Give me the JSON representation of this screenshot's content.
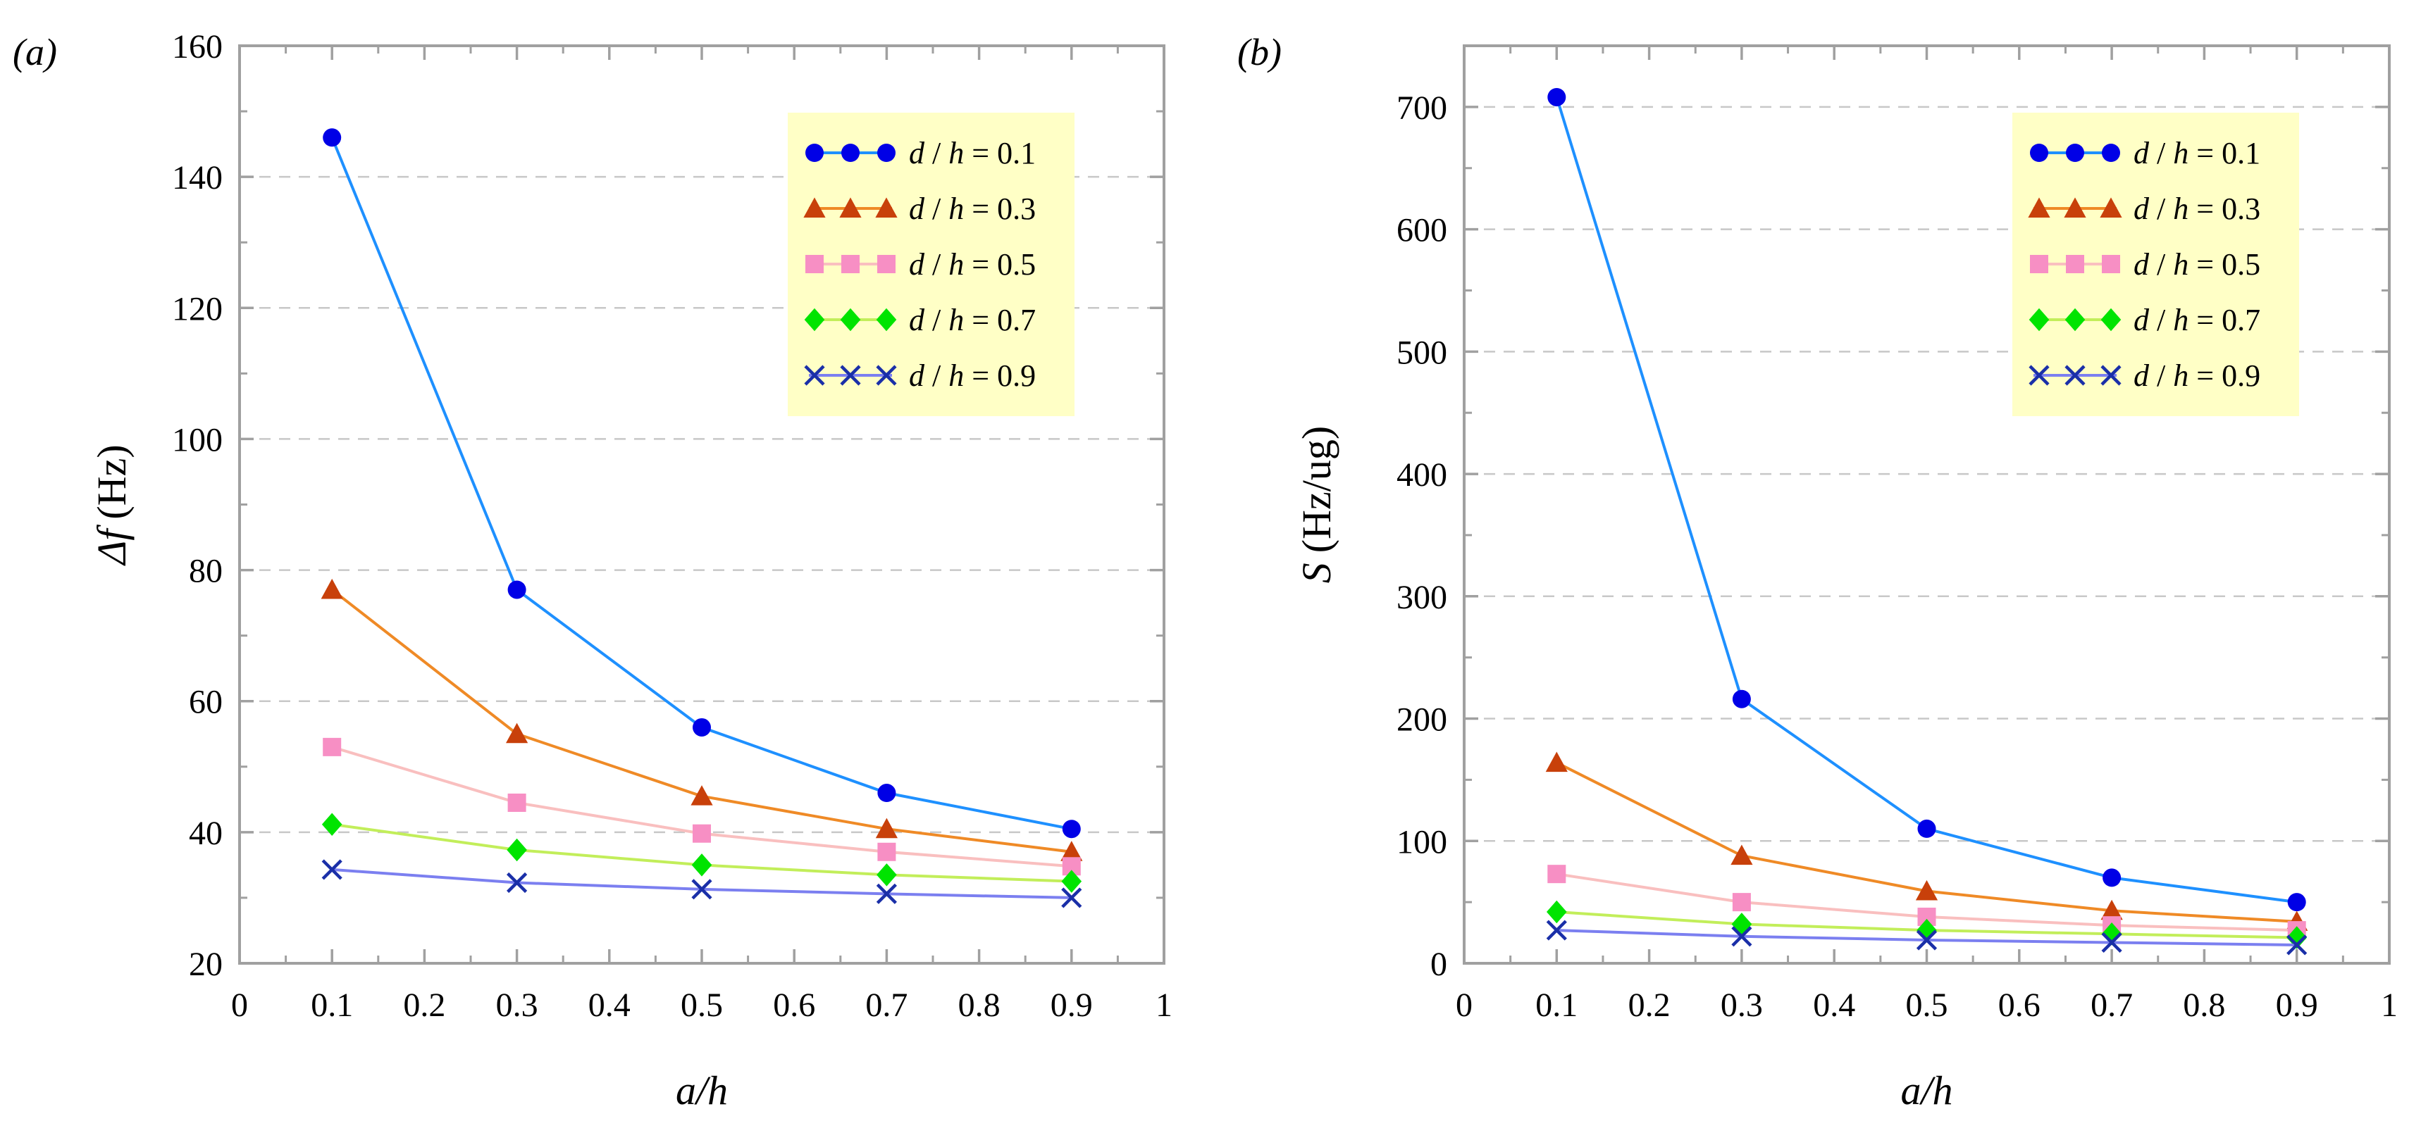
{
  "chart_data": [
    {
      "type": "line",
      "panel_label": "(a)",
      "panel_letter": "a",
      "title": "",
      "xlabel": "a/h",
      "ylabel": "Δf (Hz)",
      "ylabel_symbol": "Δf",
      "ylabel_unit": "(Hz)",
      "xlim": [
        0,
        1
      ],
      "ylim": [
        20,
        160
      ],
      "xticks": [
        0,
        0.1,
        0.2,
        0.3,
        0.4,
        0.5,
        0.6,
        0.7,
        0.8,
        0.9,
        1
      ],
      "xtick_labels": [
        "0",
        "0.1",
        "0.2",
        "0.3",
        "0.4",
        "0.5",
        "0.6",
        "0.7",
        "0.8",
        "0.9",
        "1"
      ],
      "yticks": [
        20,
        40,
        60,
        80,
        100,
        120,
        140,
        160
      ],
      "ytick_labels": [
        "20",
        "40",
        "60",
        "80",
        "100",
        "120",
        "140",
        "160"
      ],
      "grid": "horizontal dashed",
      "legend_position": "top-right",
      "x": [
        0.1,
        0.3,
        0.5,
        0.7,
        0.9
      ],
      "series": [
        {
          "name": "d / h = 0.1",
          "param": "0.1",
          "marker": "circle",
          "color": "#0000e6",
          "line_color": "#1e90ff",
          "values": [
            146,
            77,
            56,
            46,
            40.5
          ]
        },
        {
          "name": "d / h = 0.3",
          "param": "0.3",
          "marker": "triangle",
          "color": "#c8400a",
          "line_color": "#ef8a26",
          "values": [
            77,
            55,
            45.5,
            40.5,
            37
          ]
        },
        {
          "name": "d / h = 0.5",
          "param": "0.5",
          "marker": "square",
          "color": "#f78fc4",
          "line_color": "#f9bfbf",
          "values": [
            53,
            44.5,
            39.8,
            37,
            34.8
          ]
        },
        {
          "name": "d / h = 0.7",
          "param": "0.7",
          "marker": "diamond",
          "color": "#00e400",
          "line_color": "#c2ee5a",
          "values": [
            41.2,
            37.3,
            35,
            33.5,
            32.5
          ]
        },
        {
          "name": "d / h = 0.9",
          "param": "0.9",
          "marker": "x",
          "color": "#1a2fa8",
          "line_color": "#7b7ff0",
          "values": [
            34.3,
            32.3,
            31.3,
            30.6,
            30
          ]
        }
      ]
    },
    {
      "type": "line",
      "panel_label": "(b)",
      "panel_letter": "b",
      "title": "",
      "xlabel": "a/h",
      "ylabel": "S (Hz/ug)",
      "ylabel_symbol": "S",
      "ylabel_unit": "(Hz/ug)",
      "xlim": [
        0,
        1
      ],
      "ylim": [
        0,
        750
      ],
      "xticks": [
        0,
        0.1,
        0.2,
        0.3,
        0.4,
        0.5,
        0.6,
        0.7,
        0.8,
        0.9,
        1
      ],
      "xtick_labels": [
        "0",
        "0.1",
        "0.2",
        "0.3",
        "0.4",
        "0.5",
        "0.6",
        "0.7",
        "0.8",
        "0.9",
        "1"
      ],
      "yticks": [
        0,
        100,
        200,
        300,
        400,
        500,
        600,
        700
      ],
      "ytick_labels": [
        "0",
        "100",
        "200",
        "300",
        "400",
        "500",
        "600",
        "700"
      ],
      "grid": "horizontal dashed",
      "legend_position": "top-right",
      "x": [
        0.1,
        0.3,
        0.5,
        0.7,
        0.9
      ],
      "series": [
        {
          "name": "d / h = 0.1",
          "param": "0.1",
          "marker": "circle",
          "color": "#0000e6",
          "line_color": "#1e90ff",
          "values": [
            708,
            216,
            110,
            70,
            50
          ]
        },
        {
          "name": "d / h = 0.3",
          "param": "0.3",
          "marker": "triangle",
          "color": "#c8400a",
          "line_color": "#ef8a26",
          "values": [
            164,
            88,
            59,
            43,
            34
          ]
        },
        {
          "name": "d / h = 0.5",
          "param": "0.5",
          "marker": "square",
          "color": "#f78fc4",
          "line_color": "#f9bfbf",
          "values": [
            73,
            50,
            38,
            31,
            27
          ]
        },
        {
          "name": "d / h = 0.7",
          "param": "0.7",
          "marker": "diamond",
          "color": "#00e400",
          "line_color": "#c2ee5a",
          "values": [
            42,
            32,
            27,
            24,
            21
          ]
        },
        {
          "name": "d / h = 0.9",
          "param": "0.9",
          "marker": "x",
          "color": "#1a2fa8",
          "line_color": "#7b7ff0",
          "values": [
            27,
            22,
            19,
            17,
            15
          ]
        }
      ]
    }
  ],
  "colors": {
    "legend_background": "#ffffc6",
    "grid": "#c8c8c8",
    "axis": "#a0a0a0"
  }
}
